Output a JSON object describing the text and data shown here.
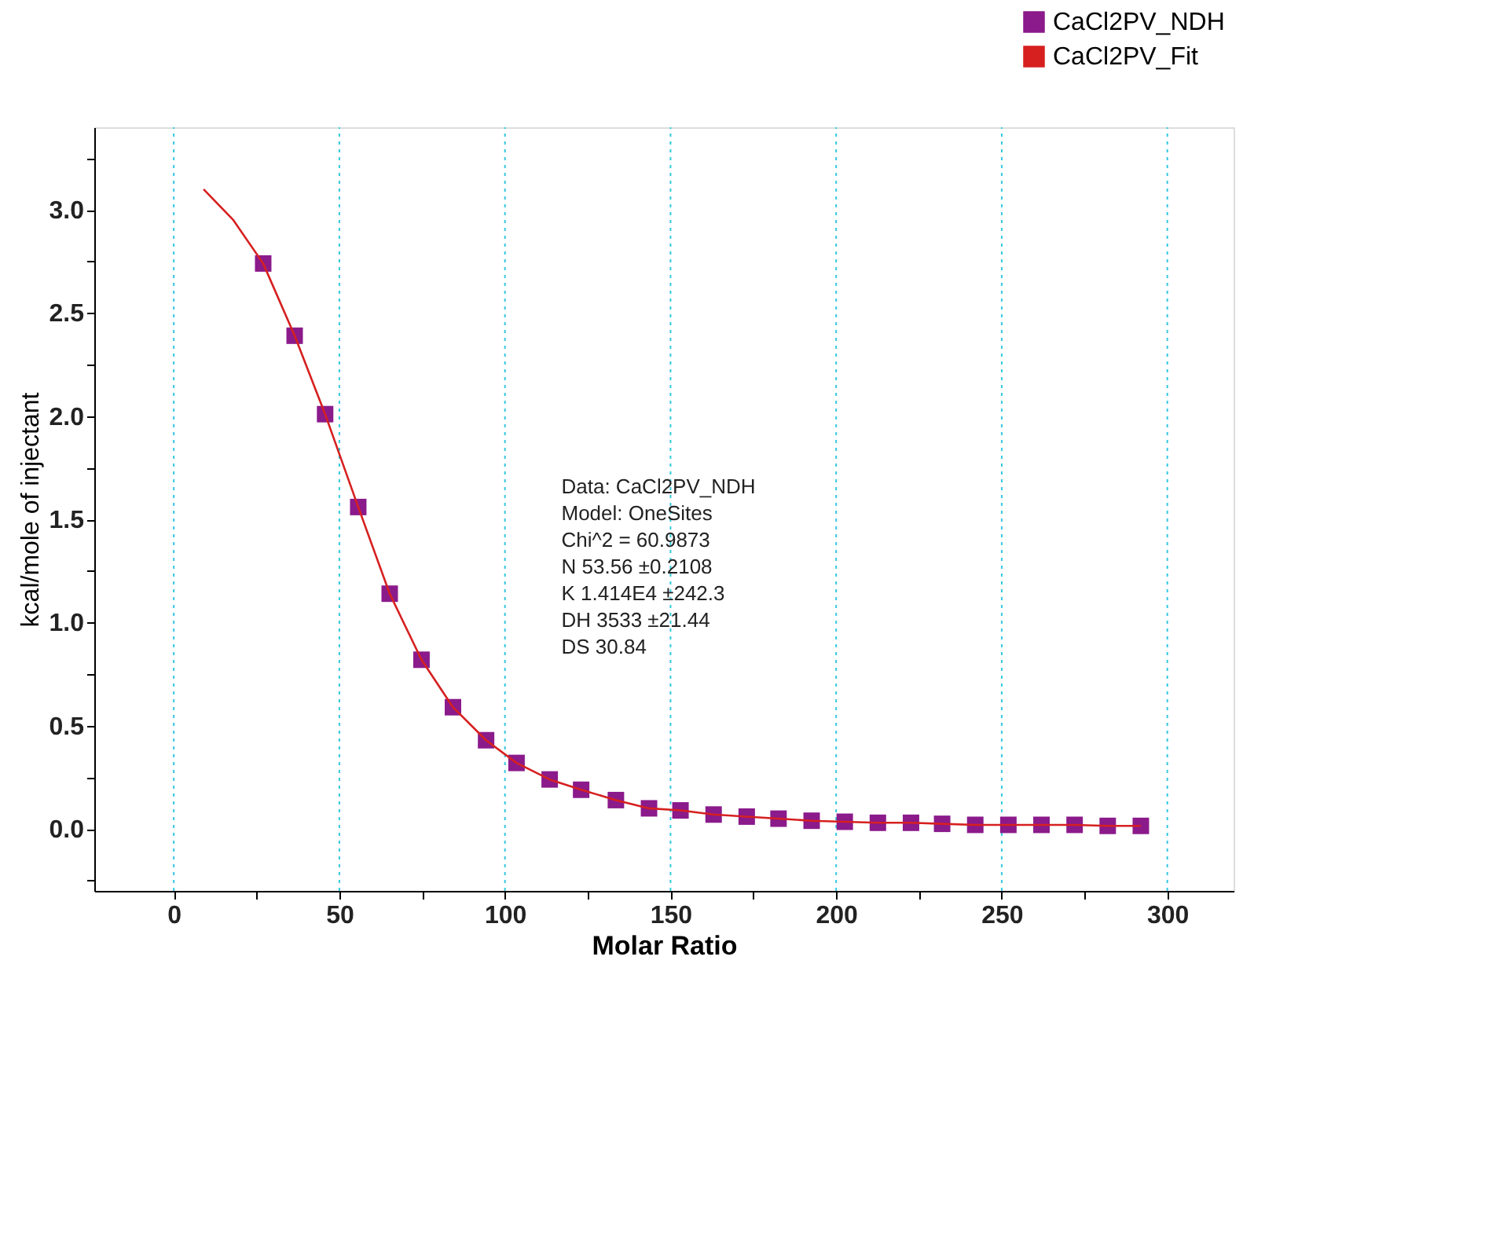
{
  "chart_data": {
    "type": "scatter",
    "xlabel": "Molar Ratio",
    "ylabel": "kcal/mole of injectant",
    "xlim": [
      -24,
      320
    ],
    "ylim": [
      -0.3,
      3.4
    ],
    "xticks": [
      0,
      {
        "value": 25,
        "label": null
      },
      50,
      {
        "value": 75,
        "label": null
      },
      100,
      {
        "value": 125,
        "label": null
      },
      150,
      {
        "value": 175,
        "label": null
      },
      200,
      {
        "value": 225,
        "label": null
      },
      250,
      {
        "value": 275,
        "label": null
      },
      300
    ],
    "yticks": [
      {
        "value": -0.25,
        "label": null
      },
      {
        "value": 0,
        "label": "0.0"
      },
      {
        "value": 0.25,
        "label": null
      },
      {
        "value": 0.5,
        "label": "0.5"
      },
      {
        "value": 0.75,
        "label": null
      },
      {
        "value": 1,
        "label": "1.0"
      },
      {
        "value": 1.25,
        "label": null
      },
      {
        "value": 1.5,
        "label": "1.5"
      },
      {
        "value": 1.75,
        "label": null
      },
      {
        "value": 2,
        "label": "2.0"
      },
      {
        "value": 2.25,
        "label": null
      },
      {
        "value": 2.5,
        "label": "2.5"
      },
      {
        "value": 2.75,
        "label": null
      },
      {
        "value": 3,
        "label": "3.0"
      },
      {
        "value": 3.25,
        "label": null
      }
    ],
    "grid": "x",
    "legend": "top right",
    "series": [
      {
        "name": "CaCl2PV_NDH",
        "type": "scatter",
        "marker": "square",
        "color": "#8b1a8b",
        "x": [
          27,
          36.5,
          45.7,
          55.7,
          65.2,
          74.8,
          84.3,
          94.3,
          103.5,
          113.5,
          123,
          133.5,
          143.5,
          153,
          163,
          173,
          182.6,
          192.6,
          202.6,
          212.6,
          222.6,
          232,
          242,
          252,
          262,
          272,
          282,
          292
        ],
        "values": [
          2.74,
          2.39,
          2.01,
          1.56,
          1.14,
          0.82,
          0.59,
          0.43,
          0.32,
          0.24,
          0.19,
          0.14,
          0.1,
          0.09,
          0.07,
          0.06,
          0.05,
          0.04,
          0.035,
          0.03,
          0.03,
          0.025,
          0.02,
          0.02,
          0.02,
          0.02,
          0.015,
          0.015
        ]
      },
      {
        "name": "CaCl2PV_Fit",
        "type": "line",
        "line_style": "solid",
        "color": "#d62020",
        "x": [
          9,
          18,
          27,
          36.5,
          45.7,
          55.7,
          65.2,
          74.8,
          84.3,
          94.3,
          103.5,
          113.5,
          123,
          133.5,
          143.5,
          153,
          163,
          173,
          182.6,
          192.6,
          202.6,
          212.6,
          222.6,
          232,
          242,
          252,
          262,
          272,
          282,
          292
        ],
        "values": [
          3.1,
          2.95,
          2.74,
          2.39,
          2.01,
          1.56,
          1.14,
          0.82,
          0.59,
          0.43,
          0.32,
          0.24,
          0.19,
          0.14,
          0.1,
          0.09,
          0.07,
          0.06,
          0.05,
          0.04,
          0.035,
          0.03,
          0.03,
          0.025,
          0.02,
          0.02,
          0.02,
          0.02,
          0.015,
          0.015
        ]
      }
    ],
    "annotations": [
      "Data: CaCl2PV_NDH",
      "Model: OneSites",
      "Chi^2 = 60.9873",
      "N        53.56             ±0.2108",
      "K        1.414E4          ±242.3",
      "DH      3533    ±21.44",
      "DS      30.84"
    ]
  }
}
